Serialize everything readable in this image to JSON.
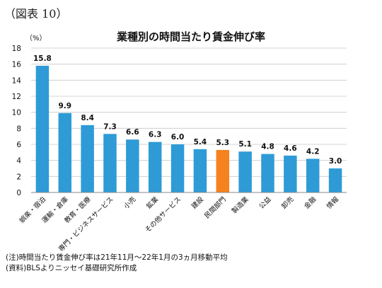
{
  "figure_label": "（図表 10）",
  "notes": {
    "note": "(注)時間当たり賃金伸び率は21年11月～22年1月の3ヵ月移動平均",
    "source": "(資料)BLSよりニッセイ基礎研究所作成"
  },
  "chart_data": {
    "type": "bar",
    "title": "業種別の時間当たり賃金伸び率",
    "ylabel": "（%）",
    "xlabel": "",
    "ylim": [
      0,
      18
    ],
    "yticks": [
      0,
      2,
      4,
      6,
      8,
      10,
      12,
      14,
      16,
      18
    ],
    "grid": true,
    "categories": [
      "娯楽・宿泊",
      "運輸・倉庫",
      "教育・医療",
      "専門・ビジネスサービス",
      "小売",
      "鉱業",
      "その他サービス",
      "建設",
      "民間部門",
      "製造業",
      "公益",
      "卸売",
      "金融",
      "情報"
    ],
    "values": [
      15.8,
      9.9,
      8.4,
      7.3,
      6.6,
      6.3,
      6.0,
      5.4,
      5.3,
      5.1,
      4.8,
      4.6,
      4.2,
      3.0
    ],
    "value_labels": [
      "15.8",
      "9.9",
      "8.4",
      "7.3",
      "6.6",
      "6.3",
      "6.0",
      "5.4",
      "5.3",
      "5.1",
      "4.8",
      "4.6",
      "4.2",
      "3.0"
    ],
    "highlight_category": "民間部門",
    "colors": {
      "bar": "#2E9BD6",
      "highlight": "#F5821F",
      "grid": "#C8C8C8"
    }
  }
}
